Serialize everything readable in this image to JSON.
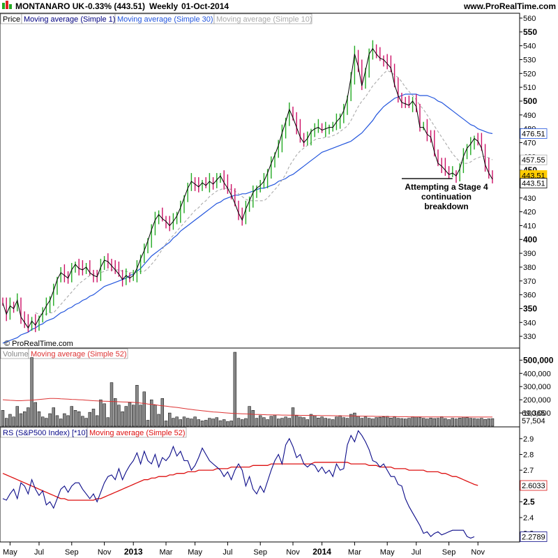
{
  "header": {
    "instrument": "MONTANARO UK",
    "change": "-0.33% (443.51)",
    "period": "Weekly",
    "date": "01-Oct-2014",
    "site": "www.ProRealTime.com"
  },
  "watermark": "© ProRealTime.com",
  "annotation": [
    "Attempting a Stage 4",
    "continuation",
    "breakdown"
  ],
  "colors": {
    "up": "#22aa22",
    "down": "#cc1166",
    "ma1": "#000000",
    "ma30": "#2255dd",
    "ma10": "#aaaaaa",
    "ma52vol": "#dd3333",
    "rs": "#0a0a88",
    "ma52rs": "#dd1111",
    "highlight": "#ffcc00",
    "logo_up": "#22aa22",
    "logo_down": "#dd2222"
  },
  "chart_data": [
    {
      "type": "candlestick",
      "legend": [
        "Price",
        "Moving average (Simple 1)",
        "Moving average (Simple 30)",
        "Moving average (Simple 10)"
      ],
      "y_ticks": [
        330,
        340,
        350,
        360,
        370,
        380,
        390,
        400,
        410,
        420,
        430,
        440,
        450,
        460,
        470,
        480,
        490,
        500,
        510,
        520,
        530,
        540,
        550,
        560
      ],
      "y_bold_ticks": [
        350,
        400,
        450,
        500,
        550
      ],
      "ylim": [
        322,
        563
      ],
      "last_labels": [
        {
          "name": "Moving average (Simple 30)",
          "value": "476.51"
        },
        {
          "name": "Moving average (Simple 10)",
          "value": "457.55"
        },
        {
          "name": "Price",
          "value": "443.51"
        },
        {
          "name": "Moving average (Simple 1)",
          "value": "443.51"
        }
      ],
      "close": [
        354,
        346,
        352,
        350,
        356,
        344,
        340,
        336,
        341,
        338,
        343,
        347,
        352,
        356,
        363,
        371,
        376,
        374,
        372,
        378,
        382,
        379,
        378,
        380,
        376,
        374,
        373,
        380,
        385,
        384,
        381,
        378,
        375,
        371,
        374,
        372,
        374,
        379,
        386,
        392,
        399,
        407,
        414,
        418,
        415,
        413,
        410,
        413,
        417,
        423,
        430,
        437,
        442,
        440,
        438,
        441,
        439,
        442,
        440,
        443,
        446,
        441,
        437,
        432,
        426,
        419,
        414,
        422,
        428,
        434,
        437,
        439,
        442,
        448,
        455,
        461,
        468,
        477,
        485,
        494,
        488,
        481,
        474,
        470,
        473,
        478,
        480,
        481,
        479,
        480,
        481,
        481,
        485,
        488,
        493,
        502,
        517,
        534,
        525,
        511,
        522,
        534,
        538,
        534,
        531,
        530,
        527,
        524,
        512,
        504,
        499,
        498,
        497,
        500,
        496,
        481,
        481,
        476,
        474,
        463,
        455,
        453,
        450,
        447,
        448,
        446,
        451,
        460,
        466,
        469,
        473,
        471,
        466,
        454,
        448,
        443.51
      ],
      "ma30": [
        325,
        326,
        327,
        328,
        329,
        331,
        332,
        333,
        335,
        336,
        338,
        339,
        341,
        342,
        343,
        345,
        347,
        348,
        350,
        351,
        353,
        354,
        356,
        357,
        359,
        360,
        362,
        364,
        366,
        367,
        368,
        369,
        370,
        371,
        372,
        374,
        375,
        377,
        379,
        382,
        385,
        388,
        390,
        392,
        394,
        396,
        398,
        401,
        403,
        406,
        408,
        410,
        412,
        414,
        416,
        418,
        420,
        422,
        424,
        426,
        427,
        429,
        430,
        431,
        432,
        432,
        433,
        433,
        434,
        435,
        436,
        437,
        437,
        438,
        439,
        440,
        442,
        443,
        444,
        446,
        447,
        449,
        451,
        453,
        455,
        457,
        459,
        461,
        463,
        464,
        465,
        466,
        467,
        468,
        469,
        470,
        471,
        473,
        475,
        477,
        480,
        483,
        486,
        490,
        493,
        496,
        498,
        500,
        502,
        503,
        504,
        505,
        505,
        505,
        505,
        504,
        504,
        504,
        503,
        502,
        500,
        499,
        497,
        495,
        493,
        491,
        489,
        487,
        485,
        483,
        482,
        480,
        479,
        478,
        477,
        476.51
      ],
      "ma10": [
        null,
        null,
        null,
        null,
        null,
        null,
        null,
        null,
        null,
        347,
        346,
        346,
        346,
        347,
        347,
        350,
        353,
        356,
        359,
        362,
        365,
        368,
        370,
        372,
        374,
        375,
        375,
        376,
        377,
        378,
        378,
        378,
        378,
        377,
        377,
        376,
        376,
        376,
        377,
        377,
        379,
        382,
        385,
        389,
        393,
        397,
        400,
        403,
        406,
        409,
        412,
        415,
        418,
        421,
        423,
        426,
        428,
        431,
        433,
        435,
        436,
        437,
        437,
        436,
        435,
        433,
        431,
        429,
        428,
        428,
        428,
        428,
        428,
        430,
        433,
        436,
        439,
        443,
        447,
        453,
        457,
        461,
        464,
        466,
        468,
        470,
        472,
        473,
        473,
        474,
        474,
        475,
        476,
        478,
        480,
        482,
        486,
        491,
        496,
        500,
        503,
        507,
        511,
        514,
        517,
        520,
        522,
        521,
        519,
        517,
        514,
        510,
        507,
        504,
        501,
        497,
        494,
        490,
        486,
        482,
        478,
        474,
        470,
        466,
        462,
        459,
        456,
        455,
        455,
        456,
        458,
        459,
        460,
        460,
        459,
        457.55
      ],
      "x_ticks": [
        {
          "label": "May",
          "i": 2
        },
        {
          "label": "Jul",
          "i": 10
        },
        {
          "label": "Sep",
          "i": 19
        },
        {
          "label": "Nov",
          "i": 28
        },
        {
          "label": "2013",
          "i": 36,
          "bold": true
        },
        {
          "label": "Mar",
          "i": 45
        },
        {
          "label": "May",
          "i": 53
        },
        {
          "label": "Jul",
          "i": 62
        },
        {
          "label": "Sep",
          "i": 71
        },
        {
          "label": "Nov",
          "i": 80
        },
        {
          "label": "2014",
          "i": 88,
          "bold": true
        },
        {
          "label": "Mar",
          "i": 97
        },
        {
          "label": "May",
          "i": 106
        },
        {
          "label": "Jul",
          "i": 114
        },
        {
          "label": "Sep",
          "i": 123
        },
        {
          "label": "Nov",
          "i": 131
        }
      ],
      "support_line": {
        "value": 444,
        "from_i": 110,
        "to_i": 124
      }
    },
    {
      "type": "bar",
      "legend": [
        "Volume",
        "Moving average (Simple 52)"
      ],
      "y_ticks": [
        {
          "label": "500,000",
          "v": 500000,
          "bold": true
        },
        {
          "label": "400,000",
          "v": 400000
        },
        {
          "label": "300,000",
          "v": 300000
        },
        {
          "label": "200,000",
          "v": 200000
        },
        {
          "label": "100,000",
          "v": 100000
        }
      ],
      "ylim": [
        0,
        560000
      ],
      "last_labels": [
        {
          "value": "69,365"
        },
        {
          "value": "57,504"
        }
      ],
      "volume": [
        120000,
        60000,
        90000,
        70000,
        150000,
        95000,
        110000,
        140000,
        520000,
        180000,
        110000,
        70000,
        60000,
        95000,
        140000,
        80000,
        55000,
        95000,
        80000,
        150000,
        120000,
        110000,
        75000,
        60000,
        105000,
        130000,
        80000,
        200000,
        170000,
        65000,
        330000,
        210000,
        160000,
        110000,
        150000,
        180000,
        160000,
        310000,
        160000,
        260000,
        45000,
        200000,
        160000,
        90000,
        210000,
        40000,
        100000,
        60000,
        70000,
        50000,
        70000,
        60000,
        55000,
        70000,
        50000,
        40000,
        45000,
        60000,
        55000,
        65000,
        42000,
        50000,
        35000,
        40000,
        560000,
        60000,
        50000,
        58000,
        150000,
        120000,
        60000,
        80000,
        65000,
        50000,
        75000,
        85000,
        55000,
        60000,
        70000,
        60000,
        140000,
        80000,
        70000,
        65000,
        50000,
        90000,
        80000,
        62000,
        70000,
        60000,
        55000,
        50000,
        70000,
        80000,
        65000,
        60000,
        90000,
        100000,
        75000,
        60000,
        70000,
        60000,
        55000,
        65000,
        68000,
        70000,
        75000,
        62000,
        70000,
        60000,
        58000,
        55000,
        60000,
        72000,
        70000,
        66000,
        60000,
        55000,
        62000,
        58000,
        60000,
        72000,
        58000,
        50000,
        60000,
        55000,
        62000,
        70000,
        65000,
        60000,
        58000,
        55000,
        60000,
        52000,
        56000,
        57504
      ],
      "ma52": [
        200000,
        198000,
        196000,
        195000,
        193000,
        193000,
        195000,
        196000,
        197000,
        199000,
        202000,
        205000,
        207000,
        210000,
        210000,
        209000,
        207000,
        206000,
        205000,
        203000,
        202000,
        200000,
        199000,
        197000,
        195000,
        193000,
        192000,
        190000,
        189000,
        188000,
        187000,
        186000,
        185000,
        184000,
        183000,
        182000,
        180000,
        178000,
        175000,
        172000,
        168000,
        165000,
        162000,
        158000,
        155000,
        152000,
        148000,
        145000,
        142000,
        138000,
        134000,
        130000,
        127000,
        123000,
        120000,
        117000,
        114000,
        111000,
        108000,
        106000,
        104000,
        102000,
        100000,
        98000,
        96000,
        95000,
        94000,
        93000,
        92000,
        90000,
        89000,
        88000,
        87000,
        86000,
        86000,
        85000,
        85000,
        84000,
        84000,
        83000,
        83000,
        83000,
        82000,
        82000,
        82000,
        82000,
        81000,
        81000,
        80000,
        80000,
        80000,
        79000,
        79000,
        78000,
        78000,
        78000,
        77000,
        77000,
        76000,
        76000,
        76000,
        75000,
        75000,
        74000,
        74000,
        74000,
        73000,
        73000,
        73000,
        72000,
        72000,
        72000,
        71000,
        71000,
        71000,
        71000,
        70000,
        70000,
        70000,
        70000,
        70000,
        70000,
        69800,
        69700,
        69600,
        69500,
        69500,
        69400,
        69400,
        69400,
        69400,
        69400,
        69400,
        69400,
        69400,
        69365
      ]
    },
    {
      "type": "line",
      "legend": [
        "RS (S&P500 Index) [*10]",
        "Moving average (Simple 52)"
      ],
      "y_ticks": [
        {
          "label": "2.9",
          "v": 2.9
        },
        {
          "label": "2.8",
          "v": 2.8
        },
        {
          "label": "2.7",
          "v": 2.7
        },
        {
          "label": "2.5",
          "v": 2.5,
          "bold": true
        },
        {
          "label": "2.4",
          "v": 2.4
        },
        {
          "label": "2.3",
          "v": 2.3
        }
      ],
      "ylim": [
        2.25,
        2.97
      ],
      "last_labels": [
        {
          "value": "2.6033"
        },
        {
          "value": "2.2789"
        }
      ],
      "rs": [
        2.52,
        2.51,
        2.55,
        2.58,
        2.52,
        2.62,
        2.6,
        2.55,
        2.64,
        2.58,
        2.54,
        2.57,
        2.48,
        2.5,
        2.46,
        2.52,
        2.58,
        2.6,
        2.56,
        2.6,
        2.62,
        2.62,
        2.58,
        2.55,
        2.52,
        2.55,
        2.5,
        2.56,
        2.62,
        2.66,
        2.67,
        2.64,
        2.71,
        2.64,
        2.69,
        2.73,
        2.76,
        2.81,
        2.74,
        2.82,
        2.76,
        2.74,
        2.8,
        2.72,
        2.78,
        2.76,
        2.79,
        2.85,
        2.79,
        2.82,
        2.76,
        2.76,
        2.7,
        2.73,
        2.78,
        2.84,
        2.8,
        2.76,
        2.74,
        2.72,
        2.7,
        2.66,
        2.69,
        2.64,
        2.7,
        2.74,
        2.7,
        2.6,
        2.66,
        2.58,
        2.55,
        2.6,
        2.56,
        2.63,
        2.7,
        2.76,
        2.8,
        2.74,
        2.86,
        2.9,
        2.85,
        2.78,
        2.8,
        2.74,
        2.72,
        2.74,
        2.73,
        2.69,
        2.72,
        2.68,
        2.7,
        2.66,
        2.74,
        2.7,
        2.71,
        2.86,
        2.92,
        2.88,
        2.95,
        2.92,
        2.88,
        2.83,
        2.76,
        2.75,
        2.72,
        2.74,
        2.7,
        2.66,
        2.66,
        2.61,
        2.6,
        2.52,
        2.47,
        2.43,
        2.39,
        2.35,
        2.3,
        2.31,
        2.28,
        2.3,
        2.31,
        2.29,
        2.3,
        2.31,
        2.32,
        2.32,
        2.32,
        2.32,
        2.28,
        2.27,
        2.2789
      ],
      "ma52": [
        2.68,
        2.67,
        2.66,
        2.65,
        2.64,
        2.63,
        2.62,
        2.61,
        2.6,
        2.59,
        2.58,
        2.57,
        2.56,
        2.55,
        2.54,
        2.53,
        2.52,
        2.52,
        2.51,
        2.51,
        2.51,
        2.51,
        2.51,
        2.51,
        2.51,
        2.51,
        2.52,
        2.52,
        2.53,
        2.54,
        2.55,
        2.56,
        2.57,
        2.58,
        2.59,
        2.6,
        2.61,
        2.62,
        2.63,
        2.64,
        2.64,
        2.65,
        2.65,
        2.66,
        2.66,
        2.66,
        2.67,
        2.67,
        2.68,
        2.68,
        2.68,
        2.69,
        2.69,
        2.69,
        2.7,
        2.7,
        2.7,
        2.7,
        2.7,
        2.71,
        2.71,
        2.71,
        2.71,
        2.72,
        2.72,
        2.72,
        2.72,
        2.72,
        2.72,
        2.73,
        2.73,
        2.73,
        2.73,
        2.73,
        2.74,
        2.74,
        2.74,
        2.74,
        2.74,
        2.74,
        2.74,
        2.74,
        2.74,
        2.74,
        2.74,
        2.74,
        2.75,
        2.75,
        2.75,
        2.75,
        2.75,
        2.75,
        2.75,
        2.75,
        2.75,
        2.75,
        2.74,
        2.74,
        2.74,
        2.74,
        2.74,
        2.73,
        2.73,
        2.73,
        2.72,
        2.72,
        2.72,
        2.72,
        2.71,
        2.71,
        2.71,
        2.71,
        2.7,
        2.7,
        2.7,
        2.7,
        2.7,
        2.69,
        2.69,
        2.69,
        2.69,
        2.68,
        2.68,
        2.67,
        2.66,
        2.66,
        2.65,
        2.64,
        2.63,
        2.62,
        2.61,
        2.6033
      ]
    }
  ]
}
